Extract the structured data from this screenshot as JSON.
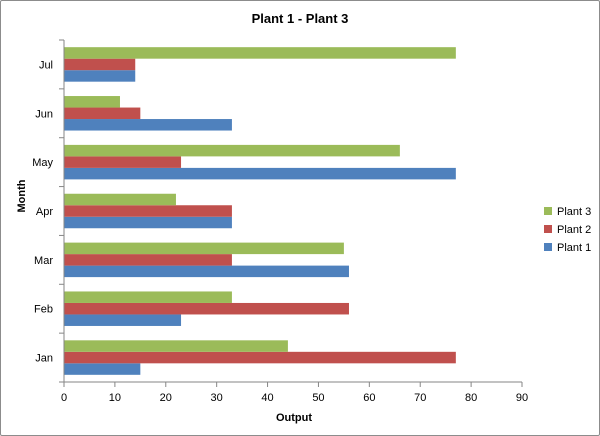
{
  "chart_data": {
    "type": "bar",
    "orientation": "horizontal",
    "title": "Plant 1 - Plant 3",
    "xlabel": "Output",
    "ylabel": "Month",
    "categories": [
      "Jan",
      "Feb",
      "Mar",
      "Apr",
      "May",
      "Jun",
      "Jul"
    ],
    "xlim": [
      0,
      90
    ],
    "xticks": [
      0,
      10,
      20,
      30,
      40,
      50,
      60,
      70,
      80,
      90
    ],
    "grid": false,
    "legend_position": "right",
    "series": [
      {
        "name": "Plant 1",
        "color": "#4F81BD",
        "values": [
          15,
          23,
          56,
          33,
          77,
          33,
          14
        ]
      },
      {
        "name": "Plant 2",
        "color": "#C0504D",
        "values": [
          77,
          56,
          33,
          33,
          23,
          15,
          14
        ]
      },
      {
        "name": "Plant 3",
        "color": "#9BBB59",
        "values": [
          44,
          33,
          55,
          22,
          66,
          11,
          77
        ]
      }
    ]
  }
}
